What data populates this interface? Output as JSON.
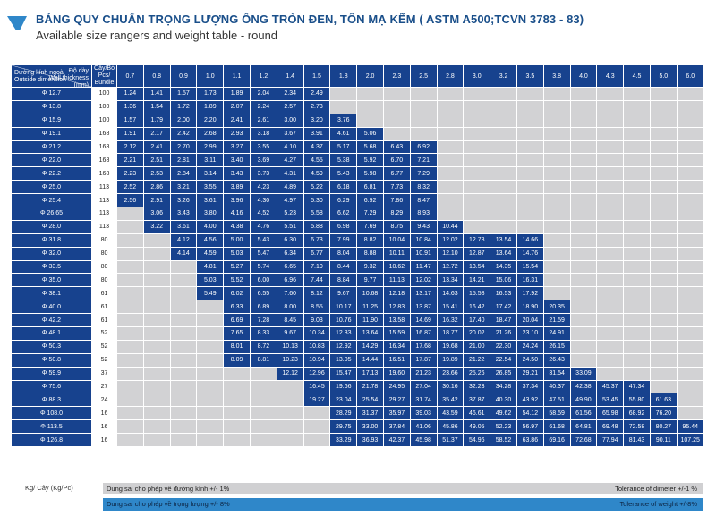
{
  "title": "BẢNG QUY CHUẨN TRỌNG LƯỢNG ỐNG TRÒN ĐEN, TÔN MẠ KẼM ( ASTM A500;TCVN 3783 - 83)",
  "subtitle": "Available size rangers and weight table - round",
  "header": {
    "wall_thickness_label": "Độ dày\nWall thickness\n(mm)",
    "outside_dimension_label": "Đường kính ngoài\nOutside dimension",
    "bundle_label": "Cây/Bó\nPcs/\nBundle"
  },
  "thickness": [
    "0.7",
    "0.8",
    "0.9",
    "1.0",
    "1.1",
    "1.2",
    "1.4",
    "1.5",
    "1.8",
    "2.0",
    "2.3",
    "2.5",
    "2.8",
    "3.0",
    "3.2",
    "3.5",
    "3.8",
    "4.0",
    "4.3",
    "4.5",
    "5.0",
    "6.0"
  ],
  "rows": [
    {
      "od": "Φ 12.7",
      "pcs": "100",
      "w": [
        "1.24",
        "1.41",
        "1.57",
        "1.73",
        "1.89",
        "2.04",
        "2.34",
        "2.49",
        "",
        "",
        "",
        "",
        "",
        "",
        "",
        "",
        "",
        "",
        "",
        "",
        "",
        ""
      ]
    },
    {
      "od": "Φ 13.8",
      "pcs": "100",
      "w": [
        "1.36",
        "1.54",
        "1.72",
        "1.89",
        "2.07",
        "2.24",
        "2.57",
        "2.73",
        "",
        "",
        "",
        "",
        "",
        "",
        "",
        "",
        "",
        "",
        "",
        "",
        "",
        ""
      ]
    },
    {
      "od": "Φ 15.9",
      "pcs": "100",
      "w": [
        "1.57",
        "1.79",
        "2.00",
        "2.20",
        "2.41",
        "2.61",
        "3.00",
        "3.20",
        "3.76",
        "",
        "",
        "",
        "",
        "",
        "",
        "",
        "",
        "",
        "",
        "",
        "",
        ""
      ]
    },
    {
      "od": "Φ 19.1",
      "pcs": "168",
      "w": [
        "1.91",
        "2.17",
        "2.42",
        "2.68",
        "2.93",
        "3.18",
        "3.67",
        "3.91",
        "4.61",
        "5.06",
        "",
        "",
        "",
        "",
        "",
        "",
        "",
        "",
        "",
        "",
        "",
        ""
      ]
    },
    {
      "od": "Φ 21.2",
      "pcs": "168",
      "w": [
        "2.12",
        "2.41",
        "2.70",
        "2.99",
        "3.27",
        "3.55",
        "4.10",
        "4.37",
        "5.17",
        "5.68",
        "6.43",
        "6.92",
        "",
        "",
        "",
        "",
        "",
        "",
        "",
        "",
        "",
        ""
      ]
    },
    {
      "od": "Φ 22.0",
      "pcs": "168",
      "w": [
        "2.21",
        "2.51",
        "2.81",
        "3.11",
        "3.40",
        "3.69",
        "4.27",
        "4.55",
        "5.38",
        "5.92",
        "6.70",
        "7.21",
        "",
        "",
        "",
        "",
        "",
        "",
        "",
        "",
        "",
        ""
      ]
    },
    {
      "od": "Φ 22.2",
      "pcs": "168",
      "w": [
        "2.23",
        "2.53",
        "2.84",
        "3.14",
        "3.43",
        "3.73",
        "4.31",
        "4.59",
        "5.43",
        "5.98",
        "6.77",
        "7.29",
        "",
        "",
        "",
        "",
        "",
        "",
        "",
        "",
        "",
        ""
      ]
    },
    {
      "od": "Φ 25.0",
      "pcs": "113",
      "w": [
        "2.52",
        "2.86",
        "3.21",
        "3.55",
        "3.89",
        "4.23",
        "4.89",
        "5.22",
        "6.18",
        "6.81",
        "7.73",
        "8.32",
        "",
        "",
        "",
        "",
        "",
        "",
        "",
        "",
        "",
        ""
      ]
    },
    {
      "od": "Φ 25.4",
      "pcs": "113",
      "w": [
        "2.56",
        "2.91",
        "3.26",
        "3.61",
        "3.96",
        "4.30",
        "4.97",
        "5.30",
        "6.29",
        "6.92",
        "7.86",
        "8.47",
        "",
        "",
        "",
        "",
        "",
        "",
        "",
        "",
        "",
        ""
      ]
    },
    {
      "od": "Φ 26.65",
      "pcs": "113",
      "w": [
        "",
        "3.06",
        "3.43",
        "3.80",
        "4.16",
        "4.52",
        "5.23",
        "5.58",
        "6.62",
        "7.29",
        "8.29",
        "8.93",
        "",
        "",
        "",
        "",
        "",
        "",
        "",
        "",
        "",
        ""
      ]
    },
    {
      "od": "Φ 28.0",
      "pcs": "113",
      "w": [
        "",
        "3.22",
        "3.61",
        "4.00",
        "4.38",
        "4.76",
        "5.51",
        "5.88",
        "6.98",
        "7.69",
        "8.75",
        "9.43",
        "10.44",
        "",
        "",
        "",
        "",
        "",
        "",
        "",
        "",
        ""
      ]
    },
    {
      "od": "Φ 31.8",
      "pcs": "80",
      "w": [
        "",
        "",
        "4.12",
        "4.56",
        "5.00",
        "5.43",
        "6.30",
        "6.73",
        "7.99",
        "8.82",
        "10.04",
        "10.84",
        "12.02",
        "12.78",
        "13.54",
        "14.66",
        "",
        "",
        "",
        "",
        "",
        ""
      ]
    },
    {
      "od": "Φ 32.0",
      "pcs": "80",
      "w": [
        "",
        "",
        "4.14",
        "4.59",
        "5.03",
        "5.47",
        "6.34",
        "6.77",
        "8.04",
        "8.88",
        "10.11",
        "10.91",
        "12.10",
        "12.87",
        "13.64",
        "14.76",
        "",
        "",
        "",
        "",
        "",
        ""
      ]
    },
    {
      "od": "Φ 33.5",
      "pcs": "80",
      "w": [
        "",
        "",
        "",
        "4.81",
        "5.27",
        "5.74",
        "6.65",
        "7.10",
        "8.44",
        "9.32",
        "10.62",
        "11.47",
        "12.72",
        "13.54",
        "14.35",
        "15.54",
        "",
        "",
        "",
        "",
        "",
        ""
      ]
    },
    {
      "od": "Φ 35.0",
      "pcs": "80",
      "w": [
        "",
        "",
        "",
        "5.03",
        "5.52",
        "6.00",
        "6.96",
        "7.44",
        "8.84",
        "9.77",
        "11.13",
        "12.02",
        "13.34",
        "14.21",
        "15.06",
        "16.31",
        "",
        "",
        "",
        "",
        "",
        ""
      ]
    },
    {
      "od": "Φ 38.1",
      "pcs": "61",
      "w": [
        "",
        "",
        "",
        "5.49",
        "6.02",
        "6.55",
        "7.60",
        "8.12",
        "9.67",
        "10.68",
        "12.18",
        "13.17",
        "14.63",
        "15.58",
        "16.53",
        "17.92",
        "",
        "",
        "",
        "",
        "",
        ""
      ]
    },
    {
      "od": "Φ 40.0",
      "pcs": "61",
      "w": [
        "",
        "",
        "",
        "",
        "6.33",
        "6.89",
        "8.00",
        "8.55",
        "10.17",
        "11.25",
        "12.83",
        "13.87",
        "15.41",
        "16.42",
        "17.42",
        "18.90",
        "20.35",
        "",
        "",
        "",
        "",
        ""
      ]
    },
    {
      "od": "Φ 42.2",
      "pcs": "61",
      "w": [
        "",
        "",
        "",
        "",
        "6.69",
        "7.28",
        "8.45",
        "9.03",
        "10.76",
        "11.90",
        "13.58",
        "14.69",
        "16.32",
        "17.40",
        "18.47",
        "20.04",
        "21.59",
        "",
        "",
        "",
        "",
        ""
      ]
    },
    {
      "od": "Φ 48.1",
      "pcs": "52",
      "w": [
        "",
        "",
        "",
        "",
        "7.65",
        "8.33",
        "9.67",
        "10.34",
        "12.33",
        "13.64",
        "15.59",
        "16.87",
        "18.77",
        "20.02",
        "21.26",
        "23.10",
        "24.91",
        "",
        "",
        "",
        "",
        ""
      ]
    },
    {
      "od": "Φ 50.3",
      "pcs": "52",
      "w": [
        "",
        "",
        "",
        "",
        "8.01",
        "8.72",
        "10.13",
        "10.83",
        "12.92",
        "14.29",
        "16.34",
        "17.68",
        "19.68",
        "21.00",
        "22.30",
        "24.24",
        "26.15",
        "",
        "",
        "",
        "",
        ""
      ]
    },
    {
      "od": "Φ 50.8",
      "pcs": "52",
      "w": [
        "",
        "",
        "",
        "",
        "8.09",
        "8.81",
        "10.23",
        "10.94",
        "13.05",
        "14.44",
        "16.51",
        "17.87",
        "19.89",
        "21.22",
        "22.54",
        "24.50",
        "26.43",
        "",
        "",
        "",
        "",
        ""
      ]
    },
    {
      "od": "Φ 59.9",
      "pcs": "37",
      "w": [
        "",
        "",
        "",
        "",
        "",
        "",
        "12.12",
        "12.96",
        "15.47",
        "17.13",
        "19.60",
        "21.23",
        "23.66",
        "25.26",
        "26.85",
        "29.21",
        "31.54",
        "33.09",
        "",
        "",
        "",
        ""
      ]
    },
    {
      "od": "Φ 75.6",
      "pcs": "27",
      "w": [
        "",
        "",
        "",
        "",
        "",
        "",
        "",
        "16.45",
        "19.66",
        "21.78",
        "24.95",
        "27.04",
        "30.16",
        "32.23",
        "34.28",
        "37.34",
        "40.37",
        "42.38",
        "45.37",
        "47.34",
        "",
        ""
      ]
    },
    {
      "od": "Φ 88.3",
      "pcs": "24",
      "w": [
        "",
        "",
        "",
        "",
        "",
        "",
        "",
        "19.27",
        "23.04",
        "25.54",
        "29.27",
        "31.74",
        "35.42",
        "37.87",
        "40.30",
        "43.92",
        "47.51",
        "49.90",
        "53.45",
        "55.80",
        "61.63",
        ""
      ]
    },
    {
      "od": "Φ 108.0",
      "pcs": "16",
      "w": [
        "",
        "",
        "",
        "",
        "",
        "",
        "",
        "",
        "28.29",
        "31.37",
        "35.97",
        "39.03",
        "43.59",
        "46.61",
        "49.62",
        "54.12",
        "58.59",
        "61.56",
        "65.98",
        "68.92",
        "76.20",
        ""
      ]
    },
    {
      "od": "Φ 113.5",
      "pcs": "16",
      "w": [
        "",
        "",
        "",
        "",
        "",
        "",
        "",
        "",
        "29.75",
        "33.00",
        "37.84",
        "41.06",
        "45.86",
        "49.05",
        "52.23",
        "56.97",
        "61.68",
        "64.81",
        "69.48",
        "72.58",
        "80.27",
        "95.44"
      ]
    },
    {
      "od": "Φ 126.8",
      "pcs": "16",
      "w": [
        "",
        "",
        "",
        "",
        "",
        "",
        "",
        "",
        "33.29",
        "36.93",
        "42.37",
        "45.98",
        "51.37",
        "54.96",
        "58.52",
        "63.86",
        "69.16",
        "72.68",
        "77.94",
        "81.43",
        "90.11",
        "107.25"
      ]
    }
  ],
  "footer": {
    "unit_note": "Kg/ Cây (Kg/Pc)",
    "tol_diameter_vi": "Dung sai cho phép về đường kính +/- 1%",
    "tol_diameter_en": "Tolerance of dimeter +/-1 %",
    "tol_weight_vi": "Dung sai cho phép về trọng lượng +/- 8%",
    "tol_weight_en": "Tolerance of weight +/-8%"
  },
  "colors": {
    "header_blue": "#17428e",
    "cell_blue": "#17428e",
    "empty_gray": "#d2d2d4",
    "accent_bar": "#2f87c9",
    "title_blue": "#1a4f8a"
  }
}
